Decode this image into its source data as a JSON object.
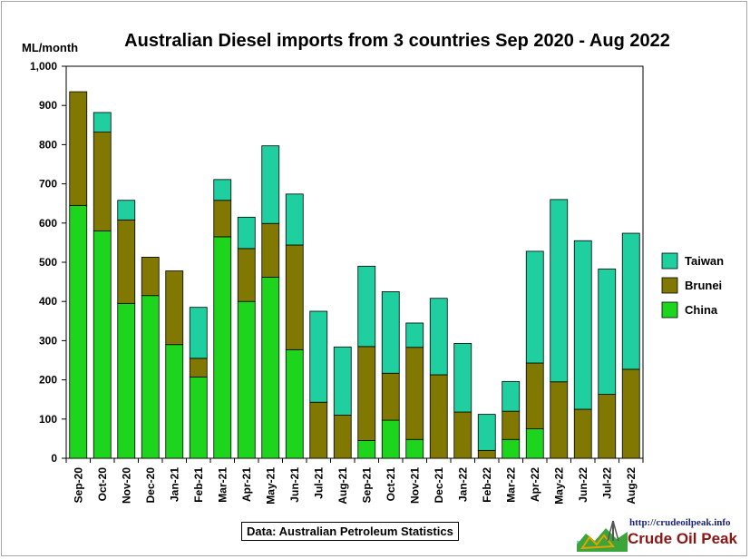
{
  "chart_data": {
    "type": "bar",
    "stacked": true,
    "title": "Australian Diesel imports from 3 countries Sep 2020 - Aug 2022",
    "ylabel": "ML/month",
    "ylim": [
      0,
      1000
    ],
    "yticks": [
      "0",
      "100",
      "200",
      "300",
      "400",
      "500",
      "600",
      "700",
      "800",
      "900",
      "1,000"
    ],
    "grid": false,
    "legend_position": "right",
    "categories": [
      "Sep-20",
      "Oct-20",
      "Nov-20",
      "Dec-20",
      "Jan-21",
      "Feb-21",
      "Mar-21",
      "Apr-21",
      "May-21",
      "Jun-21",
      "Jul-21",
      "Aug-21",
      "Sep-21",
      "Oct-21",
      "Nov-21",
      "Dec-21",
      "Jan-22",
      "Feb-22",
      "Mar-22",
      "Apr-22",
      "May-22",
      "Jun-22",
      "Jul-22",
      "Aug-22"
    ],
    "series": [
      {
        "name": "China",
        "color": "#1ed51e",
        "values": [
          645,
          580,
          395,
          415,
          290,
          207,
          565,
          400,
          462,
          277,
          0,
          0,
          45,
          97,
          48,
          0,
          0,
          0,
          48,
          75,
          0,
          0,
          0,
          0
        ]
      },
      {
        "name": "Brunei",
        "color": "#807800",
        "values": [
          290,
          252,
          213,
          98,
          188,
          48,
          93,
          135,
          137,
          267,
          143,
          110,
          240,
          120,
          235,
          213,
          118,
          20,
          72,
          168,
          195,
          125,
          163,
          227
        ]
      },
      {
        "name": "Taiwan",
        "color": "#1fcfa0",
        "values": [
          0,
          50,
          50,
          0,
          0,
          130,
          53,
          80,
          198,
          130,
          232,
          174,
          205,
          208,
          62,
          195,
          175,
          92,
          76,
          285,
          465,
          430,
          320,
          347
        ]
      }
    ],
    "legend_order": [
      "Taiwan",
      "Brunei",
      "China"
    ]
  },
  "source_note": "Data: Australian Petroleum Statistics",
  "logo": {
    "url_text": "http://crudeoilpeak.info",
    "name": "Crude Oil Peak"
  }
}
